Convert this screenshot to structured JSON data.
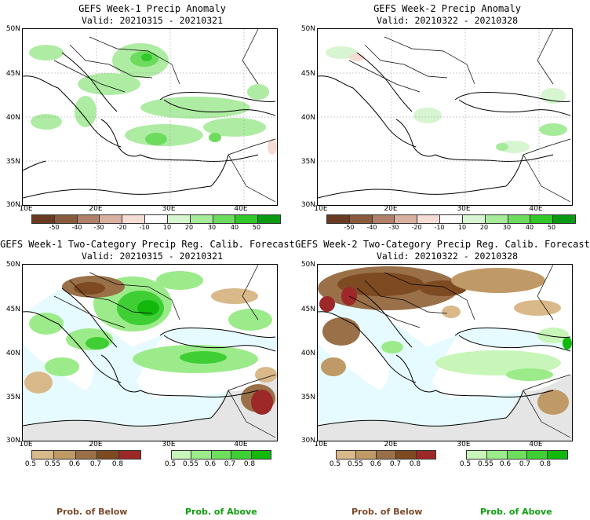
{
  "panels": [
    {
      "title": "GEFS Week-1 Precip Anomaly",
      "valid": "Valid: 20210315 - 20210321",
      "kind": "anomaly"
    },
    {
      "title": "GEFS Week-2 Precip Anomaly",
      "valid": "Valid: 20210322 - 20210328",
      "kind": "anomaly"
    },
    {
      "title": "GEFS Week-1 Two-Category Precip Reg. Calib. Forecast",
      "valid": "Valid: 20210315 - 20210321",
      "kind": "prob"
    },
    {
      "title": "GEFS Week-2 Two-Category Precip Reg. Calib. Forecast",
      "valid": "Valid: 20210322 - 20210328",
      "kind": "prob"
    }
  ],
  "lat_labels": [
    "50N",
    "45N",
    "40N",
    "35N",
    "30N"
  ],
  "lon_labels": [
    "10E",
    "20E",
    "30E",
    "40E"
  ],
  "anomaly_colorbar": {
    "ticks": [
      "-50",
      "-40",
      "-30",
      "-20",
      "-10",
      "10",
      "20",
      "30",
      "40",
      "50"
    ],
    "colors": [
      "#6b3a22",
      "#8a5a3c",
      "#b0806a",
      "#d9b0a0",
      "#f4dcd4",
      "#ffffff",
      "#d6f5d0",
      "#a6eb9a",
      "#6ddc5e",
      "#32c82a",
      "#0a9a12"
    ]
  },
  "below_colorbar": {
    "ticks": [
      "0.5",
      "0.55",
      "0.6",
      "0.7",
      "0.8"
    ],
    "colors": [
      "#d9b98a",
      "#bf9a66",
      "#9a7049",
      "#7d4a22",
      "#9c2828"
    ]
  },
  "above_colorbar": {
    "ticks": [
      "0.5",
      "0.55",
      "0.6",
      "0.7",
      "0.8"
    ],
    "colors": [
      "#c8f5b8",
      "#9ceb8a",
      "#6fde5e",
      "#3fcf35",
      "#12b80c"
    ]
  },
  "footer": {
    "below": "Prob. of Below",
    "above": "Prob. of Above",
    "below_color": "#7a4a2a",
    "above_color": "#10a010"
  },
  "colors": {
    "sea": "#e6fbff",
    "no_data": "#e5e5e5",
    "land": "#ffffff"
  }
}
